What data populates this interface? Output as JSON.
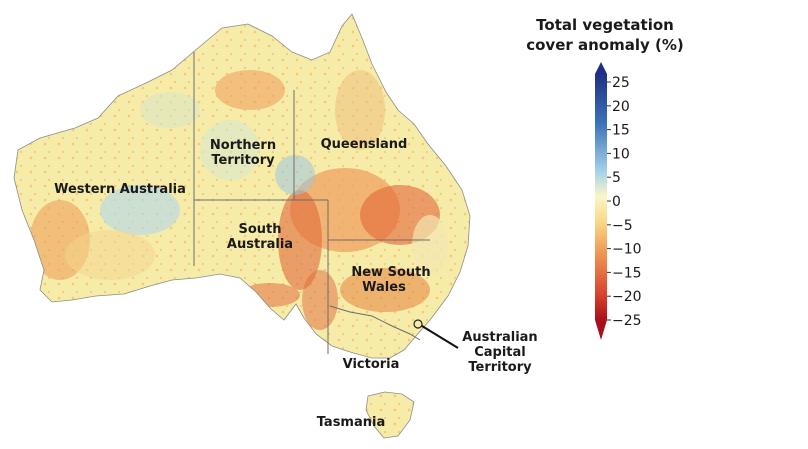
{
  "legend": {
    "title_line1": "Total vegetation",
    "title_line2": "cover anomaly (%)",
    "ticks": [
      "25",
      "20",
      "15",
      "10",
      "5",
      "0",
      "−5",
      "−10",
      "−15",
      "−20",
      "−25"
    ],
    "colors": {
      "pos_25": "#1f2f86",
      "pos_15": "#3d72b8",
      "pos_5": "#a8d4ea",
      "zero": "#fbf6c4",
      "neg_5": "#f9d98a",
      "neg_10": "#f2a55c",
      "neg_20": "#d8402c",
      "neg_25": "#a8101c"
    }
  },
  "regions": {
    "western_australia": "Western Australia",
    "northern_territory_1": "Northern",
    "northern_territory_2": "Territory",
    "queensland": "Queensland",
    "south_australia_1": "South",
    "south_australia_2": "Australia",
    "new_south_wales_1": "New South",
    "new_south_wales_2": "Wales",
    "victoria": "Victoria",
    "tasmania": "Tasmania",
    "act_1": "Australian",
    "act_2": "Capital",
    "act_3": "Territory"
  }
}
